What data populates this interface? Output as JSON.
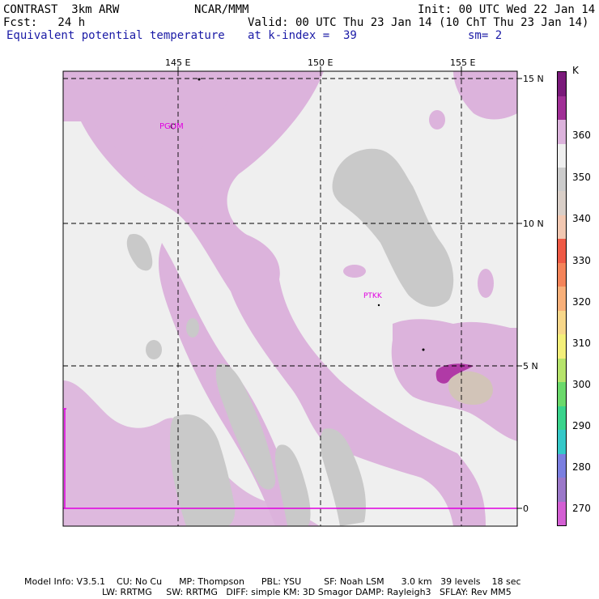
{
  "header": {
    "left1": "CONTRAST  3km ARW",
    "center1": "NCAR/MMM",
    "right1": "Init: 00 UTC Wed 22 Jan 14",
    "left2": "Fcst:   24 h",
    "right2": "Valid: 00 UTC Thu 23 Jan 14 (10 ChT Thu 23 Jan 14)",
    "left3": "Equivalent potential temperature",
    "mid3": "at k-index =  39",
    "right3": "sm= 2"
  },
  "map": {
    "lon_labels": [
      "145 E",
      "150 E",
      "155 E"
    ],
    "lat_labels": [
      "15 N",
      "10 N",
      "5 N",
      "0"
    ],
    "stations": [
      "PGUM",
      "PTKK"
    ],
    "colors": {
      "background": "#efefef",
      "lavender": "#dcb3dc",
      "gray": "#c9c9c9",
      "tan": "#d2c4b8",
      "purple": "#b03aa6",
      "station": "#e000e0"
    }
  },
  "colorbar": {
    "unit": "K",
    "ticks": [
      "360",
      "350",
      "340",
      "330",
      "320",
      "310",
      "300",
      "290",
      "280",
      "270"
    ],
    "colors": [
      "#d35fd3",
      "#9b78c9",
      "#7b7fe0",
      "#35c8c8",
      "#3ad38c",
      "#6bd96b",
      "#b6e36b",
      "#f3ef7a",
      "#f7d78a",
      "#f8b07a",
      "#f4845a",
      "#ee5a46",
      "#f2c8b2",
      "#d9cfc8",
      "#cccccc",
      "#efefef",
      "#dcb3dc",
      "#a03096",
      "#7a1a7a"
    ]
  },
  "footer": {
    "line1": "Model Info: V3.5.1    CU: No Cu      MP: Thompson      PBL: YSU        SF: Noah LSM      3.0 km   39 levels    18 sec",
    "line2": "LW: RRTMG     SW: RRTMG   DIFF: simple KM: 3D Smagor DAMP: Rayleigh3   SFLAY: Rev MM5"
  }
}
